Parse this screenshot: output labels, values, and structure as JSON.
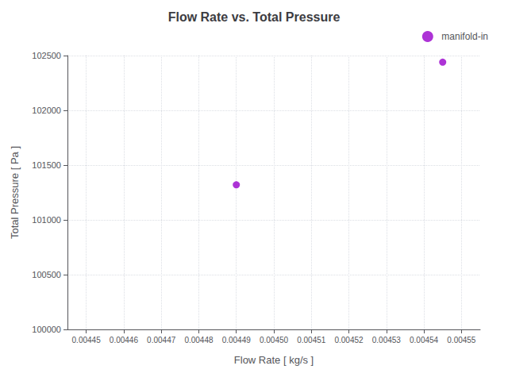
{
  "chart_data": {
    "type": "scatter",
    "title": "Flow Rate vs. Total Pressure",
    "xlabel": "Flow Rate [ kg/s ]",
    "ylabel": "Total Pressure [ Pa ]",
    "series": [
      {
        "name": "manifold-in",
        "color": "#9900cc",
        "marker": "circle",
        "x": [
          0.00449,
          0.004545
        ],
        "values": [
          101320,
          102440
        ]
      }
    ],
    "xlim": [
      0.004445,
      0.004555
    ],
    "xticks": [
      0.00445,
      0.00446,
      0.00447,
      0.00448,
      0.00449,
      {
        "value": 0.0045,
        "label": "0.00450"
      },
      0.00451,
      0.00452,
      0.00453,
      0.00454,
      0.00455
    ],
    "ylim": [
      100000,
      102500
    ],
    "yticks": [
      100000,
      100500,
      101000,
      101500,
      102000,
      102500
    ],
    "grid": true,
    "legend": "upper right"
  }
}
